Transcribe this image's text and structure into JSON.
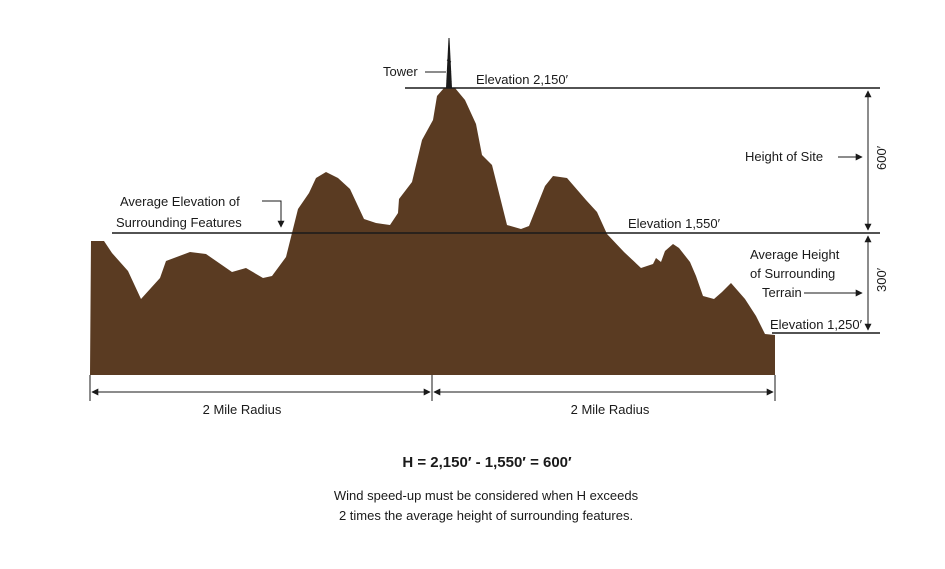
{
  "colors": {
    "terrain": "#5a3b22",
    "ink": "#1a1a1a",
    "background": "#ffffff"
  },
  "labels": {
    "tower": "Tower",
    "elev_top": "Elevation 2,150′",
    "elev_mid": "Elevation 1,550′",
    "elev_low": "Elevation 1,250′",
    "height_of_site": "Height of Site",
    "dim_600": "600′",
    "dim_300": "300′",
    "avg_elev_line1": "Average Elevation of",
    "avg_elev_line2": "Surrounding Features",
    "avg_height_line1": "Average Height",
    "avg_height_line2": "of Surrounding",
    "avg_height_line3": "Terrain",
    "radius_left": "2 Mile Radius",
    "radius_right": "2 Mile Radius"
  },
  "formula": "H = 2,150′ - 1,550′ = 600′",
  "note_line1": "Wind speed-up must be considered when H exceeds",
  "note_line2": "2 times the average height of surrounding features."
}
